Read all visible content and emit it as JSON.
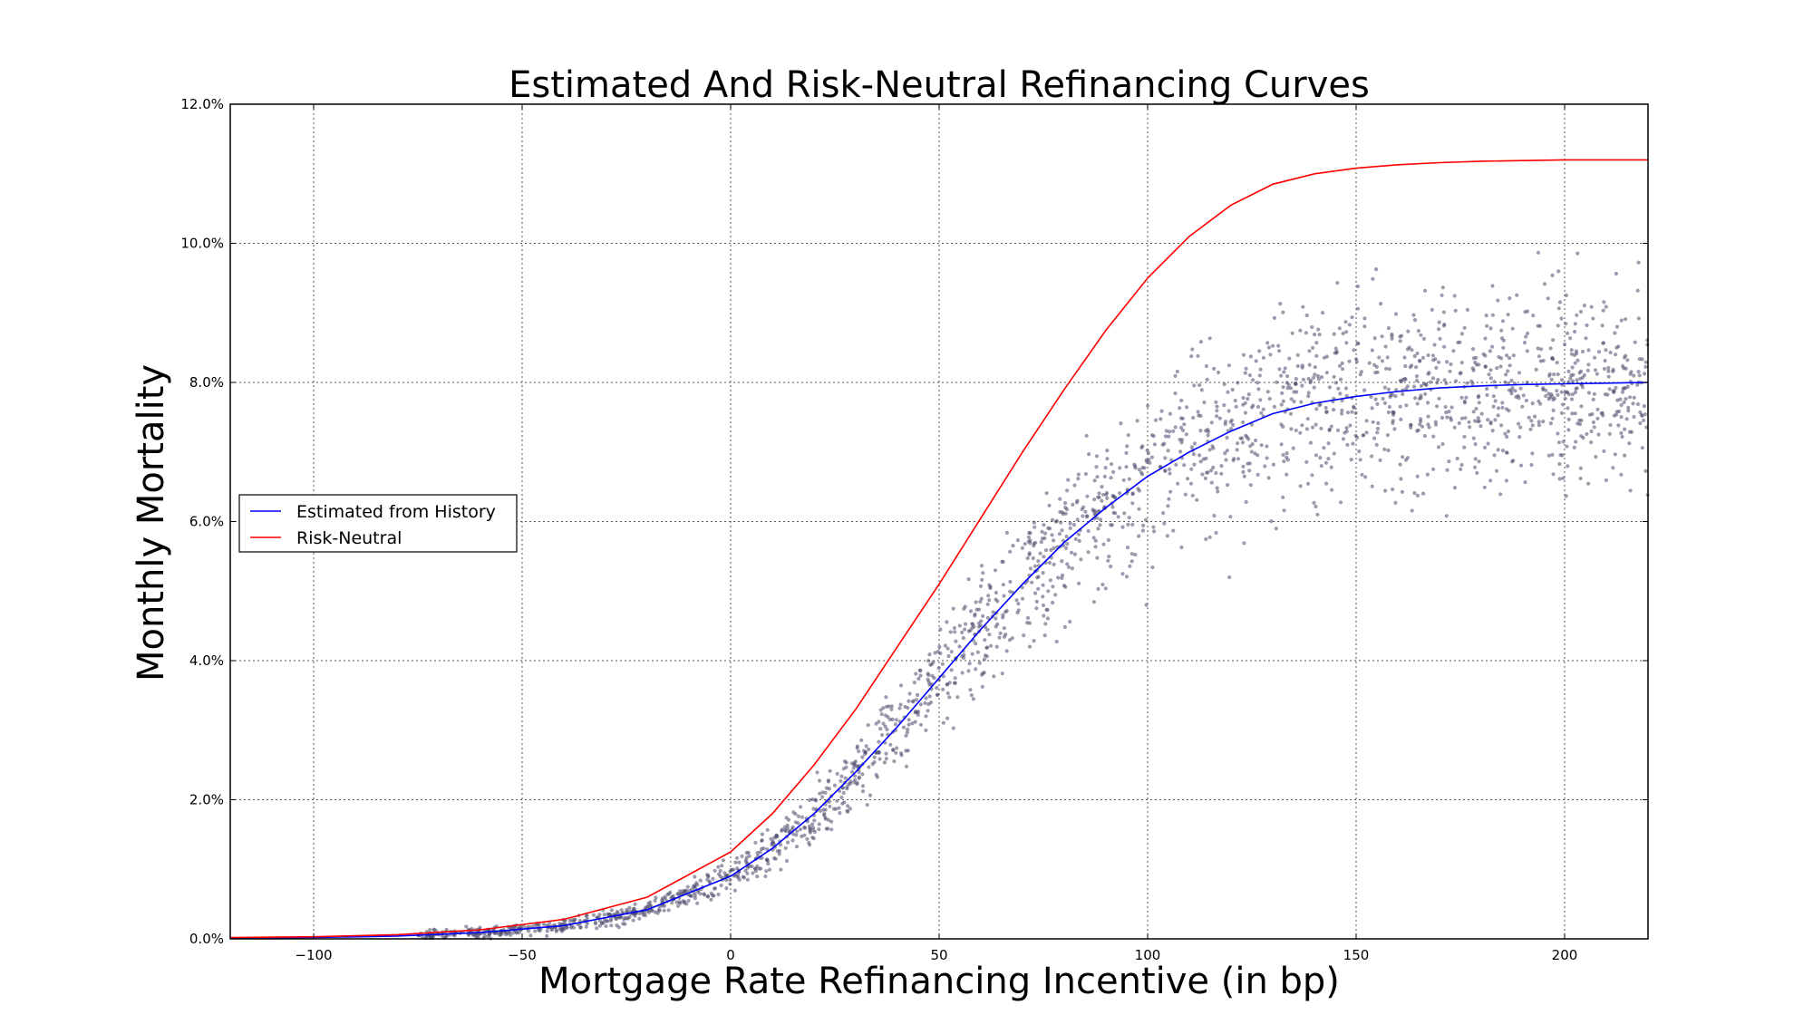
{
  "chart_data": {
    "type": "line",
    "title": "Estimated And Risk-Neutral Refinancing Curves",
    "xlabel": "Mortgage Rate Refinancing Incentive (in bp)",
    "ylabel": "Monthly Mortality",
    "xlim": [
      -120,
      220
    ],
    "ylim": [
      0,
      12
    ],
    "grid": true,
    "x_ticks": [
      -100,
      -50,
      0,
      50,
      100,
      150,
      200
    ],
    "x_tick_labels": [
      "−100",
      "−50",
      "0",
      "50",
      "100",
      "150",
      "200"
    ],
    "y_ticks": [
      0,
      2,
      4,
      6,
      8,
      10,
      12
    ],
    "y_tick_labels": [
      "0.0%",
      "2.0%",
      "4.0%",
      "6.0%",
      "8.0%",
      "10.0%",
      "12.0%"
    ],
    "legend_position": "center-left",
    "series": [
      {
        "name": "Estimated from History",
        "color": "#0000ff",
        "x": [
          -120,
          -100,
          -80,
          -60,
          -40,
          -20,
          0,
          10,
          20,
          30,
          40,
          50,
          60,
          70,
          80,
          90,
          100,
          110,
          120,
          130,
          140,
          150,
          160,
          170,
          180,
          190,
          200,
          210,
          220
        ],
        "y": [
          0.01,
          0.02,
          0.04,
          0.09,
          0.19,
          0.42,
          0.9,
          1.3,
          1.8,
          2.4,
          3.05,
          3.75,
          4.45,
          5.1,
          5.7,
          6.2,
          6.65,
          7.0,
          7.3,
          7.55,
          7.7,
          7.8,
          7.87,
          7.92,
          7.95,
          7.97,
          7.98,
          7.99,
          8.0
        ]
      },
      {
        "name": "Risk-Neutral",
        "color": "#ff0000",
        "x": [
          -120,
          -100,
          -80,
          -60,
          -40,
          -20,
          0,
          10,
          20,
          30,
          40,
          50,
          60,
          70,
          80,
          90,
          100,
          110,
          120,
          130,
          140,
          150,
          160,
          170,
          180,
          190,
          200,
          210,
          220
        ],
        "y": [
          0.02,
          0.03,
          0.06,
          0.13,
          0.28,
          0.6,
          1.25,
          1.8,
          2.5,
          3.3,
          4.2,
          5.1,
          6.05,
          7.0,
          7.9,
          8.75,
          9.5,
          10.1,
          10.55,
          10.85,
          11.0,
          11.08,
          11.13,
          11.16,
          11.18,
          11.19,
          11.2,
          11.2,
          11.2
        ]
      }
    ],
    "scatter": {
      "name": "observations",
      "color": "#4b4b6b",
      "count": 2200,
      "x_range": [
        -75,
        220
      ],
      "spread_note": "noise grows with incentive"
    }
  }
}
